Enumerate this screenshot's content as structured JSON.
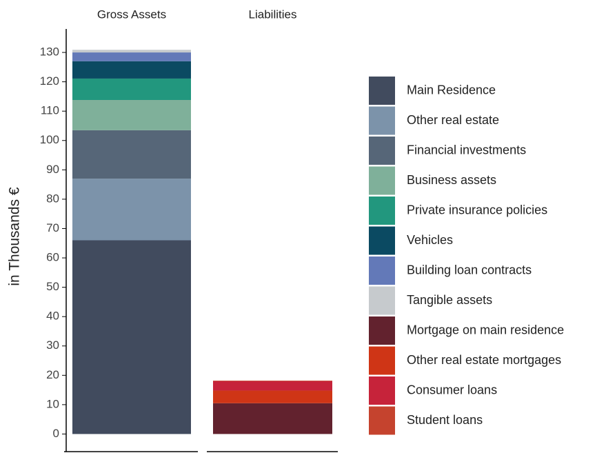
{
  "chart_data": {
    "type": "stacked-bar",
    "y_label": "in Thousands €",
    "categories": [
      "Gross Assets",
      "Liabilities"
    ],
    "ylim": [
      -6,
      138
    ],
    "yticks": [
      0,
      10,
      20,
      30,
      40,
      50,
      60,
      70,
      80,
      90,
      100,
      110,
      120,
      130
    ],
    "series": [
      {
        "name": "Main Residence",
        "color": "#414b5e",
        "values": [
          66,
          null
        ]
      },
      {
        "name": "Other real estate",
        "color": "#7c93aa",
        "values": [
          21,
          null
        ]
      },
      {
        "name": "Financial investments",
        "color": "#566678",
        "values": [
          16.5,
          null
        ]
      },
      {
        "name": "Business assets",
        "color": "#7fb09a",
        "values": [
          10.3,
          null
        ]
      },
      {
        "name": "Private insurance policies",
        "color": "#22977e",
        "values": [
          7.3,
          null
        ]
      },
      {
        "name": "Vehicles",
        "color": "#0b4a62",
        "values": [
          5.9,
          null
        ]
      },
      {
        "name": "Building loan contracts",
        "color": "#6379b8",
        "values": [
          3,
          null
        ]
      },
      {
        "name": "Tangible assets",
        "color": "#c6cacd",
        "values": [
          0.9,
          null
        ]
      },
      {
        "name": "Mortgage on main residence",
        "color": "#62222e",
        "values": [
          null,
          10.5
        ]
      },
      {
        "name": "Other real estate mortgages",
        "color": "#cf3516",
        "values": [
          null,
          4.3
        ]
      },
      {
        "name": "Consumer loans",
        "color": "#c6233a",
        "values": [
          null,
          3.2
        ]
      },
      {
        "name": "Student loans",
        "color": "#c5432e",
        "values": [
          null,
          0.2
        ]
      }
    ]
  }
}
